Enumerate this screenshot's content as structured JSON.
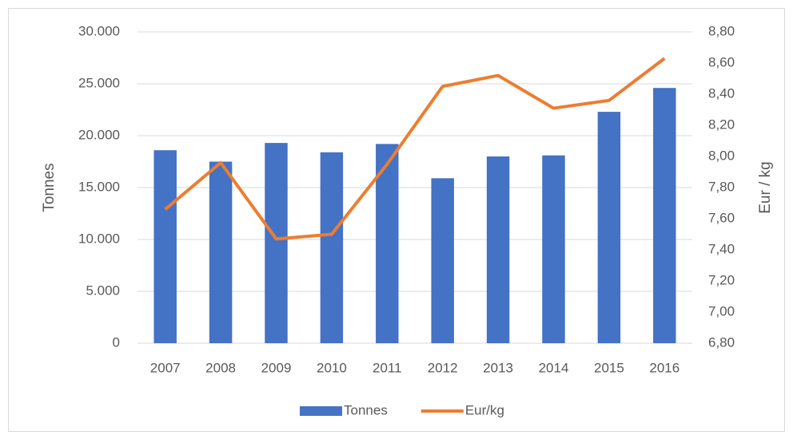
{
  "chart_data": {
    "type": "bar_line",
    "categories": [
      "2007",
      "2008",
      "2009",
      "2010",
      "2011",
      "2012",
      "2013",
      "2014",
      "2015",
      "2016"
    ],
    "series": [
      {
        "name": "Tonnes",
        "type": "bar",
        "color": "#4472c4",
        "values": [
          18600,
          17500,
          19300,
          18400,
          19200,
          15900,
          18000,
          18100,
          22300,
          24600
        ]
      },
      {
        "name": "Eur/kg",
        "type": "line",
        "axis": "y2",
        "color": "#ed7d31",
        "values": [
          7.66,
          7.96,
          7.47,
          7.5,
          7.95,
          8.45,
          8.52,
          8.31,
          8.36,
          8.63
        ]
      }
    ],
    "ylabel": "Tonnes",
    "y2label": "Eur / kg",
    "ylim": [
      0,
      30000
    ],
    "yticks": [
      0,
      {
        "value": 5000,
        "label": "5.000"
      },
      {
        "value": 10000,
        "label": "10.000"
      },
      {
        "value": 15000,
        "label": "15.000"
      },
      {
        "value": 20000,
        "label": "20.000"
      },
      {
        "value": 25000,
        "label": "25.000"
      },
      {
        "value": 30000,
        "label": "30.000"
      }
    ],
    "y2lim": [
      6.8,
      8.8
    ],
    "y2ticks": [
      {
        "value": 6.8,
        "label": "6,80"
      },
      {
        "value": 7.0,
        "label": "7,00"
      },
      {
        "value": 7.2,
        "label": "7,20"
      },
      {
        "value": 7.4,
        "label": "7,40"
      },
      {
        "value": 7.6,
        "label": "7,60"
      },
      {
        "value": 7.8,
        "label": "7,80"
      },
      {
        "value": 8.0,
        "label": "8,00"
      },
      {
        "value": 8.2,
        "label": "8,20"
      },
      {
        "value": 8.4,
        "label": "8,40"
      },
      {
        "value": 8.6,
        "label": "8,60"
      },
      {
        "value": 8.8,
        "label": "8,80"
      }
    ],
    "grid": true,
    "legend": "bottom"
  }
}
